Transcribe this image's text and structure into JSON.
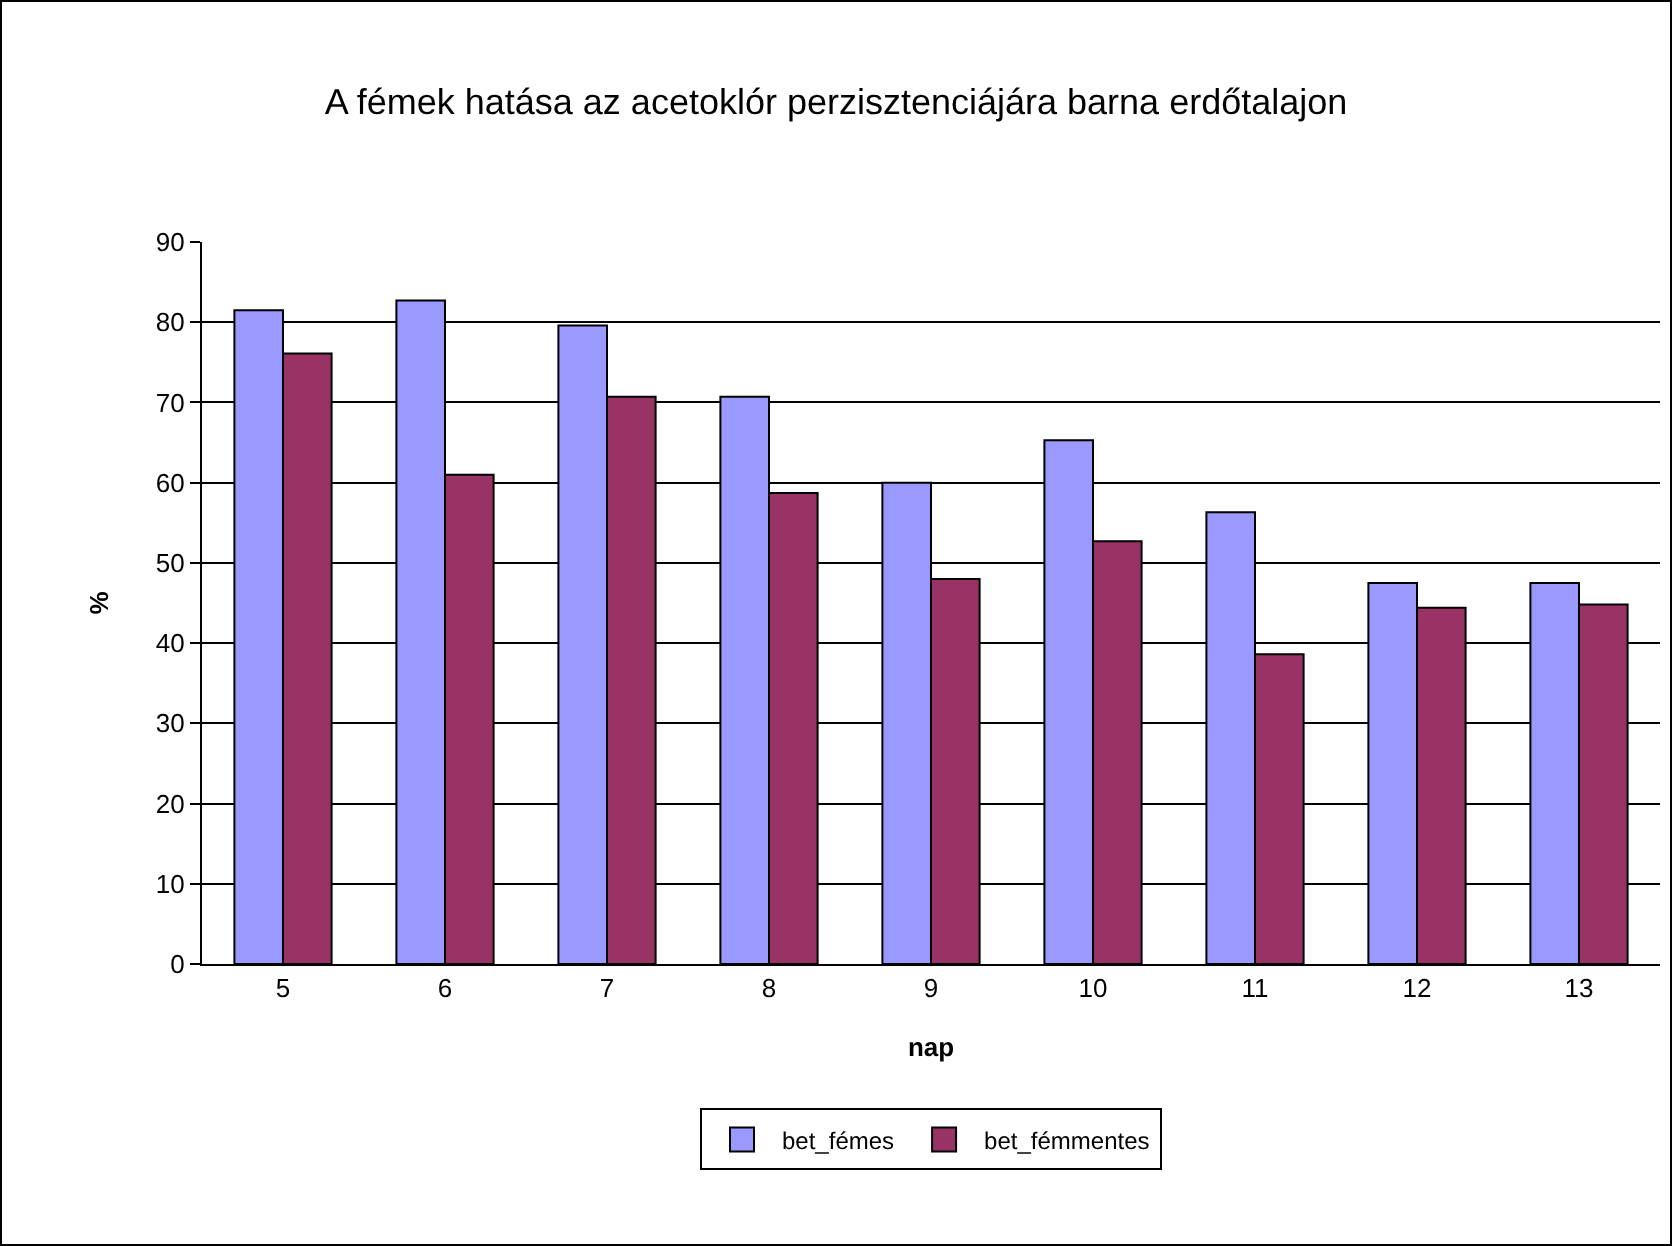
{
  "chart_data": {
    "type": "bar",
    "title": "A fémek hatása az acetoklór perzisztenciájára barna erdőtalajon",
    "xlabel": "nap",
    "ylabel": "%",
    "categories": [
      "5",
      "6",
      "7",
      "8",
      "9",
      "10",
      "11",
      "12",
      "13"
    ],
    "series": [
      {
        "name": "bet_fémes",
        "color": "#9999ff",
        "values": [
          81.5,
          82.7,
          79.6,
          70.7,
          60.0,
          65.3,
          56.3,
          47.5,
          47.5
        ]
      },
      {
        "name": "bet_fémmentes",
        "color": "#993366",
        "values": [
          76.1,
          61.0,
          70.7,
          58.7,
          48.0,
          52.7,
          38.6,
          44.4,
          44.8
        ]
      }
    ],
    "ylim": [
      0,
      90
    ],
    "yticks": [
      0,
      10,
      20,
      30,
      40,
      50,
      60,
      70,
      80,
      90
    ],
    "grid": "y",
    "legend": "bottom"
  }
}
